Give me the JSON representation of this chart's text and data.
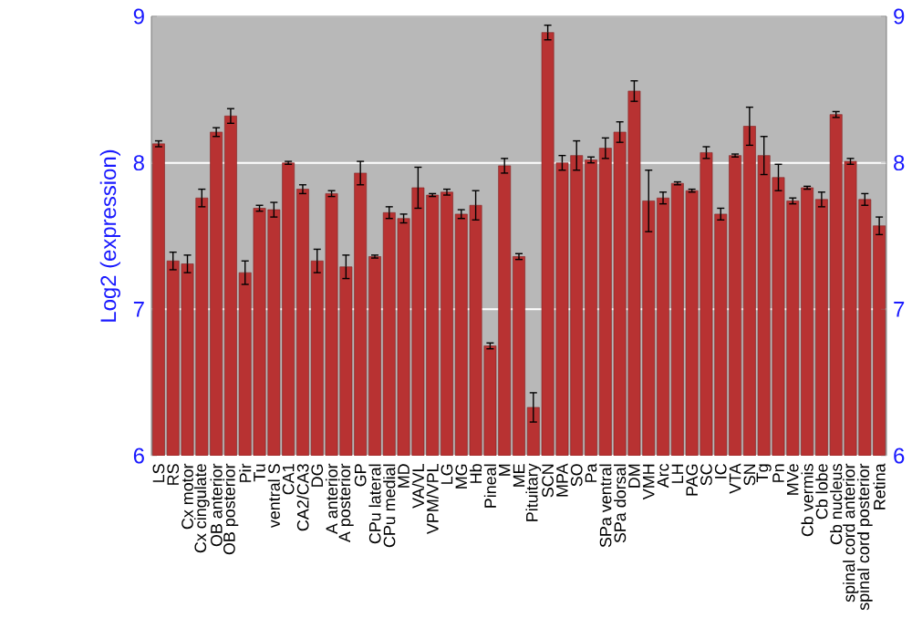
{
  "chart_data": {
    "type": "bar",
    "ylabel": "Log2 (expression)",
    "color": "#b83232",
    "categories": [
      "LS",
      "RS",
      "Cx motor",
      "Cx cingulate",
      "OB anterior",
      "OB posterior",
      "Pir",
      "Tu",
      "ventral S",
      "CA1",
      "CA2/CA3",
      "DG",
      "A anterior",
      "A posterior",
      "GP",
      "CPu lateral",
      "CPu medial",
      "MD",
      "VA/VL",
      "VPM/VPL",
      "LG",
      "MG",
      "Hb",
      "Pineal",
      "M",
      "ME",
      "Pituitary",
      "SCN",
      "MPA",
      "SO",
      "Pa",
      "SPa ventral",
      "SPa dorsal",
      "DM",
      "VMH",
      "Arc",
      "LH",
      "PAG",
      "SC",
      "IC",
      "VTA",
      "SN",
      "Tg",
      "Pn",
      "MVe",
      "Cb vermis",
      "Cb lobe",
      "Cb nucleus",
      "spinal cord anterior",
      "spinal cord posterior",
      "Retina"
    ],
    "values": [
      8.13,
      7.33,
      7.31,
      7.76,
      8.21,
      8.32,
      7.25,
      7.69,
      7.68,
      8.0,
      7.82,
      7.33,
      7.79,
      7.29,
      7.93,
      7.36,
      7.66,
      7.62,
      7.83,
      7.78,
      7.8,
      7.65,
      7.71,
      6.75,
      7.98,
      7.36,
      6.33,
      8.89,
      8.0,
      8.05,
      8.02,
      8.1,
      8.21,
      8.49,
      7.74,
      7.76,
      7.86,
      7.81,
      8.07,
      7.65,
      8.05,
      8.25,
      8.05,
      7.9,
      7.74,
      7.83,
      7.75,
      8.33,
      8.01,
      7.75,
      7.57
    ],
    "errors": [
      0.02,
      0.06,
      0.06,
      0.06,
      0.03,
      0.05,
      0.08,
      0.02,
      0.05,
      0.01,
      0.03,
      0.08,
      0.02,
      0.08,
      0.08,
      0.01,
      0.04,
      0.03,
      0.14,
      0.01,
      0.02,
      0.03,
      0.1,
      0.02,
      0.05,
      0.02,
      0.1,
      0.05,
      0.05,
      0.1,
      0.02,
      0.07,
      0.07,
      0.07,
      0.21,
      0.04,
      0.01,
      0.01,
      0.04,
      0.04,
      0.01,
      0.13,
      0.13,
      0.09,
      0.02,
      0.01,
      0.05,
      0.02,
      0.02,
      0.04,
      0.06
    ],
    "ylim": [
      6,
      9
    ],
    "yticks": [
      6,
      7,
      8,
      9
    ],
    "y2lim": [
      6,
      9
    ],
    "y2ticks": [
      6,
      7,
      8,
      9
    ],
    "grid": "y"
  }
}
